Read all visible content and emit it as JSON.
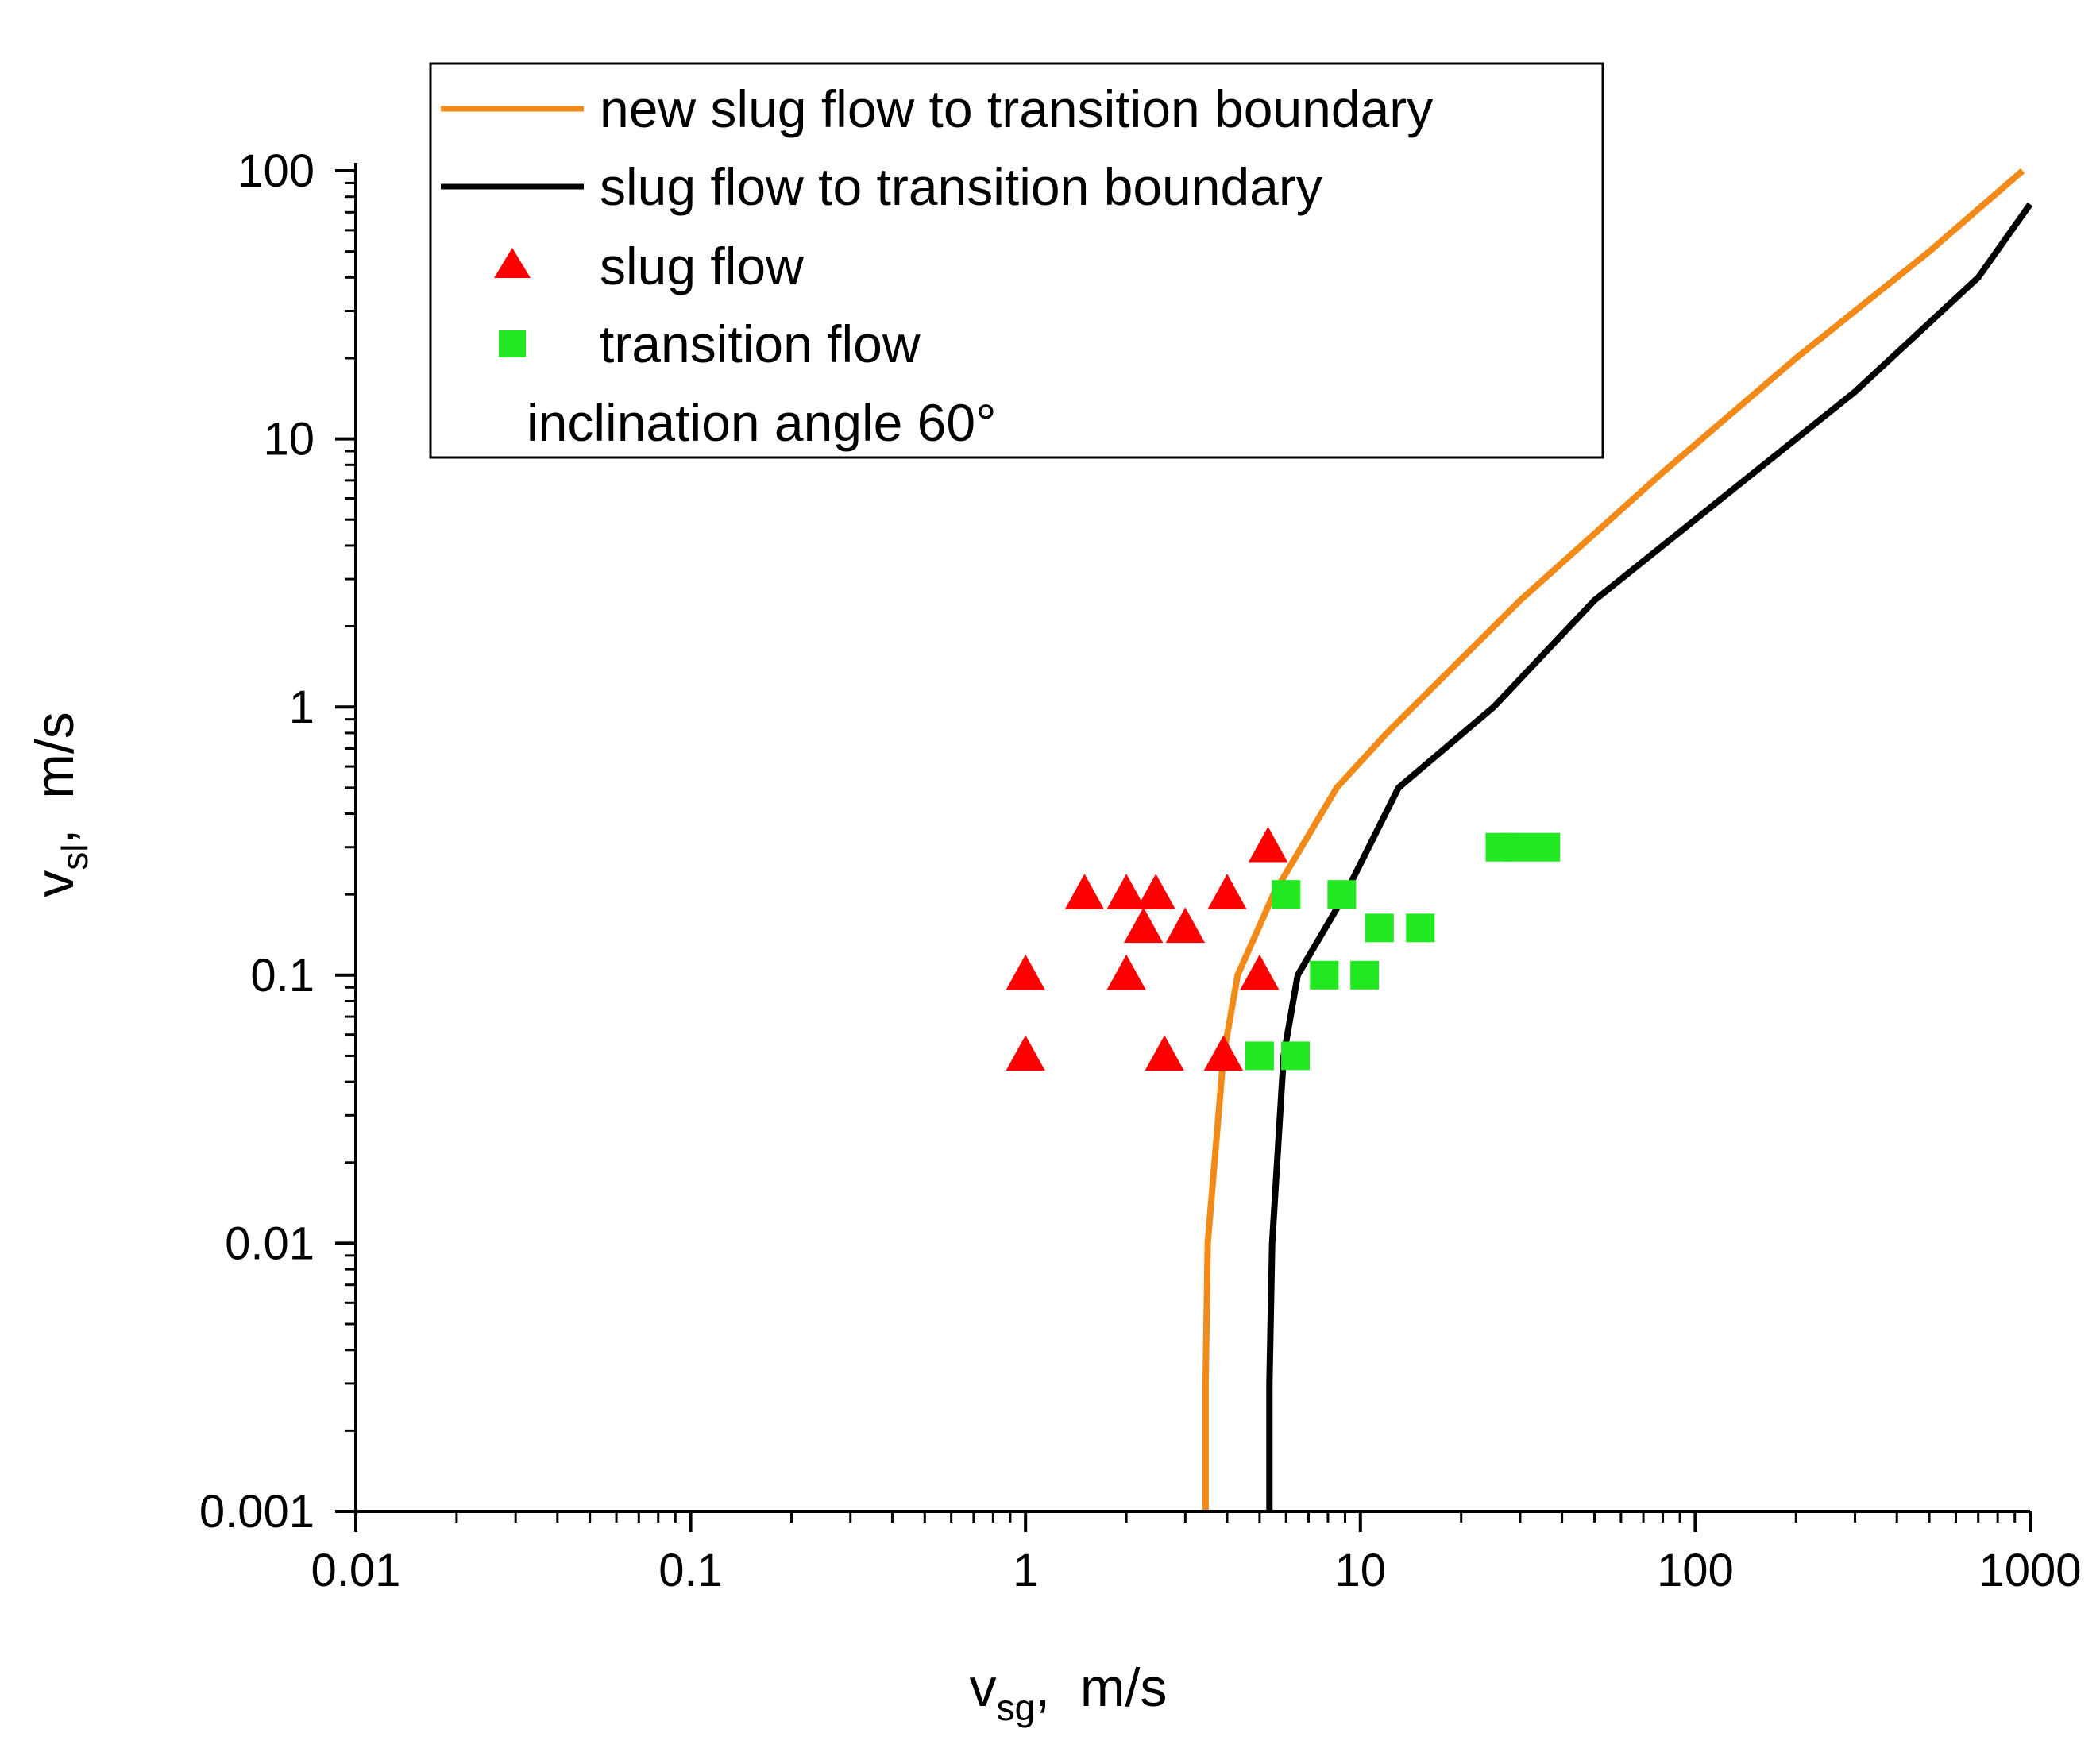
{
  "chart_data": {
    "type": "scatter",
    "x_scale": "log",
    "y_scale": "log",
    "xlim": [
      0.01,
      1000
    ],
    "ylim": [
      0.001,
      100
    ],
    "x_ticks": [
      "0.01",
      "0.1",
      "1",
      "10",
      "100",
      "1000"
    ],
    "y_ticks": [
      "0.001",
      "0.01",
      "0.1",
      "1",
      "10",
      "100"
    ],
    "xlabel": {
      "main": "v",
      "sub": "sg",
      "unit": ",  m/s"
    },
    "ylabel": {
      "main": "v",
      "sub": "sl",
      "unit": ",  m/s"
    },
    "legend_position": "top-left",
    "annotation": "inclination angle 60°",
    "series": [
      {
        "name": "new slug flow to transition boundary",
        "kind": "line",
        "color": "#f28a1a",
        "x": [
          3.45,
          3.45,
          3.5,
          3.9,
          4.3,
          5.5,
          8.5,
          12,
          30,
          80,
          200,
          500,
          950
        ],
        "y": [
          0.001,
          0.003,
          0.01,
          0.05,
          0.1,
          0.2,
          0.5,
          0.8,
          2.5,
          7.5,
          20,
          50,
          100
        ]
      },
      {
        "name": "slug flow to transition boundary",
        "kind": "line",
        "color": "#000000",
        "x": [
          5.35,
          5.35,
          5.45,
          5.9,
          6.5,
          9,
          13,
          25,
          50,
          120,
          300,
          700,
          1100
        ],
        "y": [
          0.001,
          0.003,
          0.01,
          0.05,
          0.1,
          0.2,
          0.5,
          1,
          2.5,
          6,
          15,
          40,
          75
        ]
      },
      {
        "name": "slug flow",
        "kind": "marker",
        "marker": "triangle",
        "color": "#ff0000",
        "x": [
          1.0,
          1.0,
          1.5,
          2.0,
          2.45,
          2.25,
          2.0,
          3.0,
          4.0,
          5.3,
          5.0,
          2.6,
          3.9
        ],
        "y": [
          0.1,
          0.05,
          0.2,
          0.2,
          0.2,
          0.15,
          0.1,
          0.15,
          0.2,
          0.3,
          0.1,
          0.05,
          0.05
        ]
      },
      {
        "name": "transition flow",
        "kind": "marker",
        "marker": "square",
        "color": "#22e822",
        "x": [
          6.0,
          8.8,
          5.0,
          6.4,
          7.8,
          10.3,
          11.4,
          15.1,
          26.1,
          29.5,
          35.8
        ],
        "y": [
          0.2,
          0.2,
          0.05,
          0.05,
          0.1,
          0.1,
          0.15,
          0.15,
          0.3,
          0.3,
          0.3
        ]
      }
    ]
  }
}
